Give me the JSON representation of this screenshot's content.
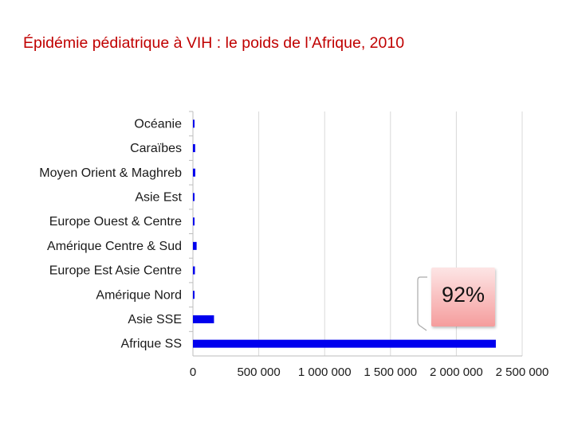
{
  "slide": {
    "title": "Épidémie pédiatrique à VIH : le poids de l’Afrique, 2010"
  },
  "callout": {
    "text": "92%",
    "color_top": "#fde5e5",
    "color_bottom": "#f59d9d"
  },
  "chart_data": {
    "type": "bar",
    "orientation": "horizontal",
    "title": "",
    "xlabel": "",
    "ylabel": "",
    "categories": [
      "Océanie",
      "Caraïbes",
      "Moyen Orient & Maghreb",
      "Asie Est",
      "Europe Ouest & Centre",
      "Amérique Centre & Sud",
      "Europe Est Asie Centre",
      "Amérique Nord",
      "Asie SSE",
      "Afrique SS"
    ],
    "values": [
      4000,
      17000,
      18000,
      7000,
      1500,
      28000,
      15000,
      1000,
      160000,
      2300000
    ],
    "xlim": [
      0,
      2500000
    ],
    "xticks": [
      0,
      500000,
      1000000,
      1500000,
      2000000,
      2500000
    ],
    "xtick_labels": [
      "0",
      "500 000",
      "1 000 000",
      "1 500 000",
      "2 000 000",
      "2 500 000"
    ],
    "bar_color": "#0000ee",
    "grid": true,
    "legend": "none"
  }
}
